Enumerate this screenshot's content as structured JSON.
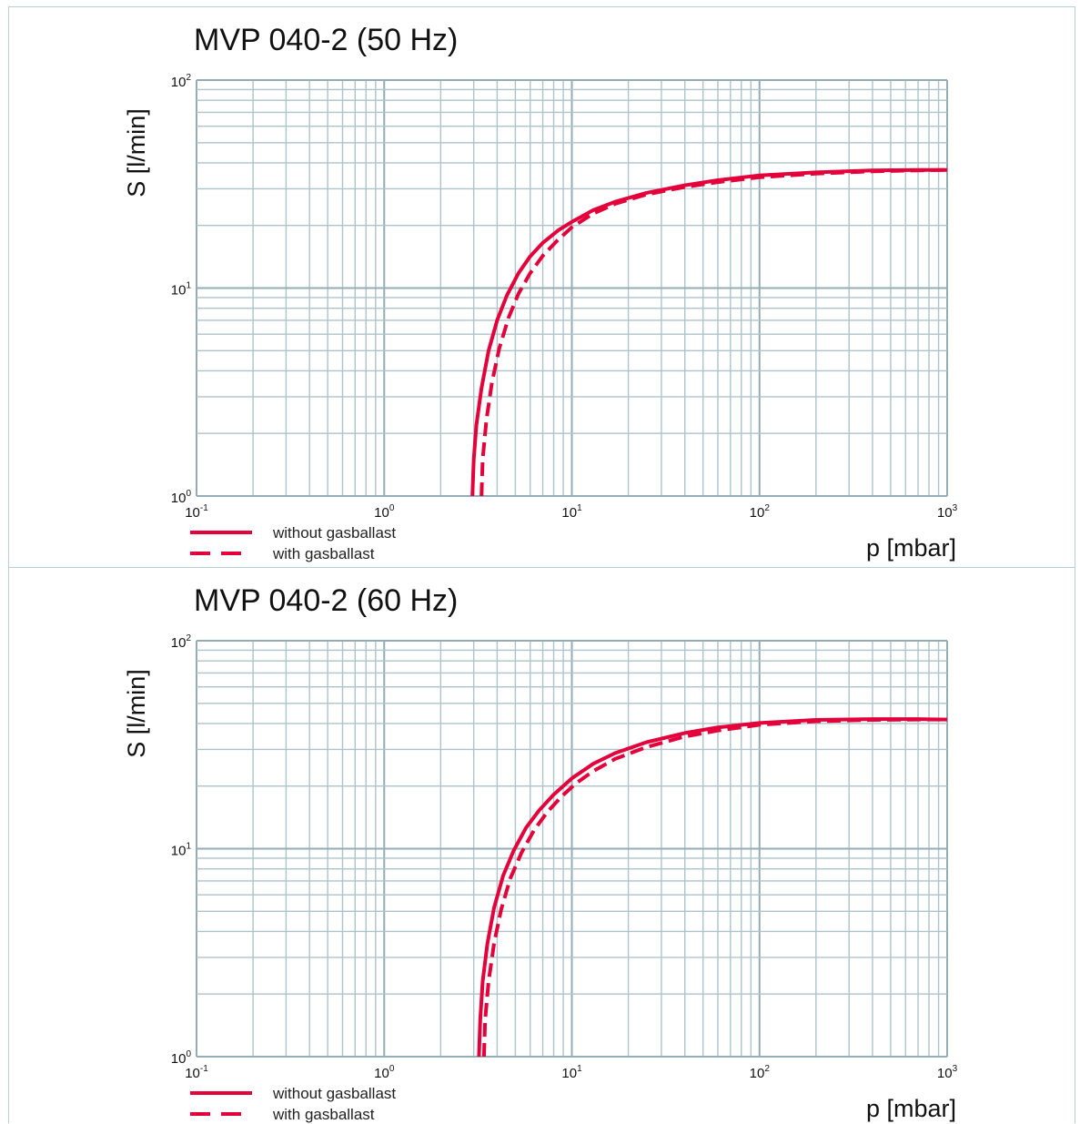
{
  "chart_data": [
    {
      "type": "line",
      "title": "MVP 040-2 (50 Hz)",
      "xlabel": "p  [mbar]",
      "ylabel": "S  [l/min]",
      "xscale": "log",
      "yscale": "log",
      "xlim": [
        0.1,
        1000
      ],
      "ylim": [
        1,
        100
      ],
      "grid": true,
      "legend_position": "bottom-left",
      "x_ticks": [
        {
          "base": "10",
          "exp": "-1"
        },
        {
          "base": "10",
          "exp": "0"
        },
        {
          "base": "10",
          "exp": "1"
        },
        {
          "base": "10",
          "exp": "2"
        },
        {
          "base": "10",
          "exp": "3"
        }
      ],
      "y_ticks": [
        {
          "base": "10",
          "exp": "0"
        },
        {
          "base": "10",
          "exp": "1"
        },
        {
          "base": "10",
          "exp": "2"
        }
      ],
      "series": [
        {
          "name": "without gasballast",
          "style": "solid",
          "color": "#e4003a",
          "x": [
            2.95,
            3.0,
            3.1,
            3.3,
            3.6,
            4.0,
            4.5,
            5.2,
            6.0,
            7.0,
            8.5,
            10,
            13,
            17,
            25,
            40,
            60,
            100,
            200,
            400,
            700,
            1000
          ],
          "y": [
            1.0,
            1.5,
            2.2,
            3.3,
            5.0,
            7.0,
            9.2,
            11.8,
            14.2,
            16.5,
            19.0,
            20.8,
            23.7,
            26.0,
            28.7,
            31.2,
            33.0,
            34.8,
            36.0,
            36.8,
            37.0,
            37.0
          ]
        },
        {
          "name": "with gasballast",
          "style": "dashed",
          "color": "#e4003a",
          "x": [
            3.3,
            3.35,
            3.5,
            3.75,
            4.1,
            4.6,
            5.2,
            6.0,
            7.0,
            8.3,
            10,
            13,
            17,
            25,
            40,
            60,
            100,
            200,
            400,
            700,
            1000
          ],
          "y": [
            1.0,
            1.5,
            2.3,
            3.5,
            5.1,
            7.2,
            9.4,
            11.8,
            14.3,
            16.8,
            19.6,
            22.8,
            25.4,
            28.2,
            30.6,
            32.3,
            34.1,
            35.5,
            36.4,
            36.8,
            37.0
          ]
        }
      ]
    },
    {
      "type": "line",
      "title": "MVP 040-2 (60 Hz)",
      "xlabel": "p  [mbar]",
      "ylabel": "S  [l/min]",
      "xscale": "log",
      "yscale": "log",
      "xlim": [
        0.1,
        1000
      ],
      "ylim": [
        1,
        100
      ],
      "grid": true,
      "legend_position": "bottom-left",
      "x_ticks": [
        {
          "base": "10",
          "exp": "-1"
        },
        {
          "base": "10",
          "exp": "0"
        },
        {
          "base": "10",
          "exp": "1"
        },
        {
          "base": "10",
          "exp": "2"
        },
        {
          "base": "10",
          "exp": "3"
        }
      ],
      "y_ticks": [
        {
          "base": "10",
          "exp": "0"
        },
        {
          "base": "10",
          "exp": "1"
        },
        {
          "base": "10",
          "exp": "2"
        }
      ],
      "series": [
        {
          "name": "without gasballast",
          "style": "solid",
          "color": "#e4003a",
          "x": [
            3.2,
            3.25,
            3.35,
            3.55,
            3.85,
            4.3,
            4.9,
            5.7,
            6.7,
            8.0,
            10,
            13,
            17,
            25,
            40,
            60,
            100,
            200,
            400,
            700,
            1000
          ],
          "y": [
            1.0,
            1.5,
            2.3,
            3.5,
            5.2,
            7.4,
            9.8,
            12.6,
            15.3,
            18.2,
            21.8,
            25.6,
            28.8,
            32.5,
            36.0,
            38.3,
            40.2,
            41.6,
            42.0,
            42.0,
            41.8
          ]
        },
        {
          "name": "with gasballast",
          "style": "dashed",
          "color": "#e4003a",
          "x": [
            3.4,
            3.45,
            3.6,
            3.85,
            4.2,
            4.7,
            5.4,
            6.3,
            7.4,
            8.8,
            10.5,
            13,
            17,
            25,
            40,
            60,
            100,
            200,
            400,
            700,
            1000
          ],
          "y": [
            1.0,
            1.5,
            2.3,
            3.5,
            5.1,
            7.2,
            9.6,
            12.3,
            15.0,
            17.8,
            20.6,
            23.6,
            27.0,
            30.8,
            34.6,
            37.0,
            39.4,
            41.0,
            41.6,
            41.8,
            41.8
          ]
        }
      ]
    }
  ]
}
